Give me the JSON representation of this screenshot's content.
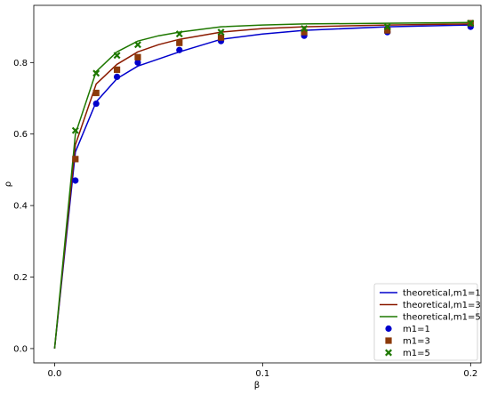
{
  "chart_data": {
    "type": "line",
    "xlabel": "β",
    "ylabel": "ρ",
    "xlim": [
      -0.01,
      0.205
    ],
    "ylim": [
      -0.04,
      0.96
    ],
    "xticks": [
      0.0,
      0.1,
      0.2
    ],
    "xtick_labels": [
      "0.0",
      "0.1",
      "0.2"
    ],
    "yticks": [
      0.0,
      0.2,
      0.4,
      0.6,
      0.8
    ],
    "ytick_labels": [
      "0.0",
      "0.2",
      "0.4",
      "0.6",
      "0.8"
    ],
    "grid": false,
    "legend_position": "lower-right",
    "line_series": [
      {
        "name": "theoretical,m1=1",
        "color": "#0000cc",
        "x": [
          0.0,
          0.01,
          0.02,
          0.03,
          0.04,
          0.05,
          0.06,
          0.08,
          0.1,
          0.12,
          0.16,
          0.2
        ],
        "y": [
          0.0,
          0.55,
          0.69,
          0.755,
          0.79,
          0.81,
          0.83,
          0.865,
          0.88,
          0.89,
          0.9,
          0.905
        ]
      },
      {
        "name": "theoretical,m1=3",
        "color": "#8b1a00",
        "x": [
          0.0,
          0.01,
          0.02,
          0.03,
          0.04,
          0.05,
          0.06,
          0.08,
          0.1,
          0.12,
          0.16,
          0.2
        ],
        "y": [
          0.0,
          0.57,
          0.74,
          0.795,
          0.83,
          0.85,
          0.865,
          0.885,
          0.895,
          0.9,
          0.905,
          0.908
        ]
      },
      {
        "name": "theoretical,m1=5",
        "color": "#1e7800",
        "x": [
          0.0,
          0.01,
          0.02,
          0.03,
          0.04,
          0.05,
          0.06,
          0.08,
          0.1,
          0.12,
          0.16,
          0.2
        ],
        "y": [
          0.0,
          0.6,
          0.775,
          0.83,
          0.86,
          0.875,
          0.885,
          0.9,
          0.905,
          0.908,
          0.91,
          0.912
        ]
      }
    ],
    "scatter_series": [
      {
        "name": "m1=1",
        "color": "#0000cc",
        "marker": "circle",
        "x": [
          0.01,
          0.02,
          0.03,
          0.04,
          0.06,
          0.08,
          0.12,
          0.16,
          0.2
        ],
        "y": [
          0.47,
          0.685,
          0.76,
          0.8,
          0.835,
          0.86,
          0.875,
          0.885,
          0.9
        ]
      },
      {
        "name": "m1=3",
        "color": "#8b3a0a",
        "marker": "square",
        "x": [
          0.01,
          0.02,
          0.03,
          0.04,
          0.06,
          0.08,
          0.12,
          0.16,
          0.2
        ],
        "y": [
          0.53,
          0.715,
          0.78,
          0.815,
          0.855,
          0.87,
          0.885,
          0.89,
          0.91
        ]
      },
      {
        "name": "m1=5",
        "color": "#1e7800",
        "marker": "x",
        "x": [
          0.01,
          0.02,
          0.03,
          0.04,
          0.06,
          0.08,
          0.12,
          0.16,
          0.2
        ],
        "y": [
          0.61,
          0.77,
          0.82,
          0.85,
          0.88,
          0.885,
          0.895,
          0.9,
          0.91
        ]
      }
    ]
  }
}
